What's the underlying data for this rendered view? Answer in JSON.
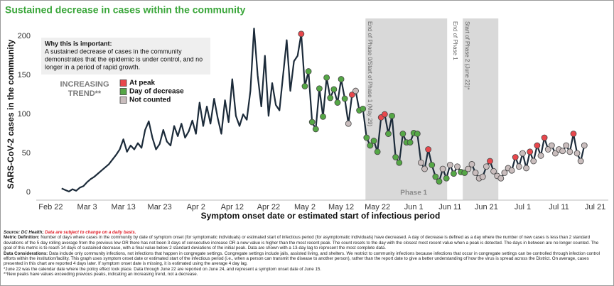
{
  "chart_data": {
    "type": "line",
    "title": "Sustained decrease in cases within the community",
    "y_label": "SARS-CoV-2 cases in the community",
    "x_label": "Symptom onset date or estimated start of infectious period",
    "xlim": [
      -4,
      153.6
    ],
    "ylim": [
      -10,
      211
    ],
    "yticks": [
      0,
      50,
      100,
      150,
      200
    ],
    "xticks": [
      {
        "value": 0,
        "label": "Feb 22"
      },
      {
        "value": 10,
        "label": "Mar 3"
      },
      {
        "value": 20,
        "label": "Mar 13"
      },
      {
        "value": 30,
        "label": "Mar 23"
      },
      {
        "value": 40,
        "label": "Apr 2"
      },
      {
        "value": 50,
        "label": "Apr 12"
      },
      {
        "value": 60,
        "label": "Apr 22"
      },
      {
        "value": 70,
        "label": "May 2"
      },
      {
        "value": 80,
        "label": "May 12"
      },
      {
        "value": 90,
        "label": "May 22"
      },
      {
        "value": 100,
        "label": "Jun 1"
      },
      {
        "value": 110,
        "label": "Jun 11"
      },
      {
        "value": 120,
        "label": "Jun 21"
      },
      {
        "value": 130,
        "label": "Jul 1"
      },
      {
        "value": 140,
        "label": "Jul 11"
      },
      {
        "value": 150,
        "label": "Jul 21"
      }
    ],
    "series": [
      {
        "type": "line",
        "color": "#1c2b3a",
        "x": [
          3,
          4,
          5,
          6,
          7,
          8,
          9,
          10,
          11,
          12,
          13,
          14,
          15,
          16,
          17,
          18,
          19,
          20,
          21,
          22,
          23,
          24,
          25,
          26,
          27,
          28,
          29,
          30,
          31,
          32,
          33,
          34,
          35,
          36,
          37,
          38,
          39,
          40,
          41,
          42,
          43,
          44,
          45,
          46,
          47,
          48,
          49,
          50,
          51,
          52,
          53,
          54,
          55,
          56,
          57,
          58,
          59,
          60,
          61,
          62,
          63,
          64,
          65,
          66,
          67,
          68,
          69,
          70,
          71,
          72,
          73,
          74,
          75,
          76,
          77,
          78,
          79,
          80,
          81,
          82,
          83,
          84,
          85,
          86,
          87,
          88,
          89,
          90,
          91,
          92,
          93,
          94,
          95,
          96,
          97,
          98,
          99,
          100,
          101,
          102,
          103,
          104,
          105,
          106,
          107,
          108,
          109,
          110,
          111,
          112,
          113,
          114,
          115,
          116,
          117,
          118,
          119,
          120,
          121,
          122,
          123,
          124,
          125,
          126,
          127,
          128,
          129,
          130,
          131,
          132,
          133,
          134,
          135,
          136,
          137,
          138,
          139,
          140,
          141,
          142,
          143,
          144,
          145,
          146,
          147
        ],
        "values": [
          5,
          3,
          1,
          4,
          2,
          6,
          8,
          13,
          17,
          20,
          24,
          28,
          32,
          36,
          42,
          48,
          55,
          68,
          52,
          60,
          55,
          63,
          57,
          80,
          91,
          70,
          55,
          62,
          80,
          65,
          60,
          85,
          72,
          88,
          70,
          78,
          92,
          75,
          115,
          85,
          110,
          88,
          120,
          95,
          75,
          118,
          90,
          145,
          98,
          85,
          100,
          93,
          130,
          210,
          150,
          110,
          175,
          98,
          140,
          112,
          105,
          150,
          195,
          130,
          168,
          175,
          203,
          136,
          155,
          90,
          81,
          133,
          97,
          147,
          121,
          132,
          115,
          145,
          120,
          88,
          125,
          130,
          105,
          107,
          70,
          60,
          66,
          52,
          96,
          100,
          75,
          98,
          45,
          38,
          75,
          64,
          64,
          76,
          75,
          38,
          30,
          55,
          35,
          20,
          14,
          30,
          18,
          35,
          24,
          33,
          26,
          25,
          30,
          36,
          25,
          18,
          20,
          33,
          40,
          27,
          21,
          18,
          25,
          31,
          28,
          45,
          33,
          50,
          31,
          52,
          40,
          60,
          47,
          70,
          55,
          60,
          50,
          55,
          53,
          60,
          52,
          75,
          50,
          40,
          60
        ]
      },
      {
        "type": "scatter",
        "name": "At peak",
        "color": "#e8474c",
        "x": [
          69,
          83,
          91,
          92,
          104,
          121,
          128,
          132,
          134,
          136,
          144
        ],
        "values": [
          203,
          125,
          96,
          100,
          55,
          40,
          45,
          52,
          60,
          70,
          75
        ]
      },
      {
        "type": "scatter",
        "name": "Day of decrease",
        "color": "#55a746",
        "x": [
          70,
          71,
          72,
          73,
          74,
          75,
          76,
          77,
          78,
          79,
          80,
          81,
          85,
          86,
          87,
          88,
          89,
          90,
          93,
          94,
          95,
          96,
          97,
          98,
          99,
          100,
          101,
          105,
          106,
          107,
          109,
          111,
          113,
          114
        ],
        "values": [
          136,
          155,
          90,
          81,
          133,
          97,
          147,
          121,
          132,
          115,
          145,
          120,
          105,
          107,
          70,
          60,
          66,
          52,
          75,
          98,
          45,
          38,
          75,
          64,
          64,
          76,
          75,
          35,
          20,
          14,
          18,
          24,
          26,
          25
        ]
      },
      {
        "type": "scatter",
        "name": "Not counted",
        "color": "#c9bdbd",
        "x": [
          82,
          84,
          102,
          103,
          108,
          110,
          112,
          115,
          116,
          117,
          118,
          119,
          120,
          122,
          123,
          124,
          125,
          126,
          127,
          129,
          130,
          131,
          133,
          135,
          137,
          138,
          139,
          140,
          141,
          142,
          143,
          145,
          146,
          147
        ],
        "values": [
          88,
          130,
          38,
          30,
          30,
          35,
          33,
          30,
          36,
          25,
          18,
          20,
          33,
          27,
          21,
          18,
          25,
          31,
          28,
          33,
          50,
          31,
          40,
          47,
          55,
          60,
          50,
          55,
          53,
          60,
          52,
          50,
          40,
          60
        ]
      }
    ],
    "bands": [
      {
        "from": 86.7,
        "to": 109.2,
        "label": "End of Phase 0/Start of Phase 1 (May 29)"
      },
      {
        "from": 113.5,
        "to": 123.3,
        "label": "Start of Phase 2 (June 22)*"
      }
    ],
    "markers": [
      {
        "x": 111.3,
        "label": "End of Phase 1"
      }
    ],
    "phase_label": {
      "x": 100,
      "label": "Phase 1"
    },
    "callout": {
      "title": "Why this is important:",
      "lines": [
        "A sustained decrease of cases in the community",
        "demonstrates that the epidemic is under control, and no",
        "longer in a period of rapid growth."
      ]
    },
    "trend_label": [
      "INCREASING",
      "TREND**"
    ],
    "source": {
      "label": "Source: DC Health;",
      "note": "Data are subject to change on a daily basis."
    },
    "notes": [
      {
        "label": "Metric Definition:",
        "text": "Number of days where cases in the community by date of symptom onset (for symptomatic individuals) or estimated start of infectious period (for asymptomatic individuals) have decreased. A day of decrease is defined as a day where the number of new cases is less than 2 standard deviations of the 5 day rolling average from the previous low OR there has not been 3 days of consecutive increase OR a new value is higher than the most recent peak. The count resets to the day with the closest most recent value when a peak is detected. The days in between are no longer counted. The goal of this metric is to reach 14 days of sustained decrease, with a final value below 2 standard deviations of the initial peak. Data are shown with a 13-day lag to represent the most complete data."
      },
      {
        "label": "Data Considerations:",
        "text": "Data include only community infections, not infections that happen in congregate settings. Congregate settings include jails, assisted living, and shelters. We restrict to community infections because infections that occur in congregate settings can be controlled through infection control efforts within the institution/facility. This graph uses symptom onset date or estimated start of the infectious period (i.e., when a person can transmit the disease to another person), rather than the report date to give a better understanding of how the virus is spread across the District. On average, cases presented in this chart are reported 4 days later. If symptom onset date is missing, it is estimated using the average 4 day lag."
      }
    ],
    "footnotes": [
      "*June 22 was the calendar date where the policy effect took place. Data through June 22 are reported on June 24, and represent a symptom onset date of June 15.",
      "**New peaks have values exceeding previous peaks, indicating an increasing trend, not a decrease."
    ]
  }
}
